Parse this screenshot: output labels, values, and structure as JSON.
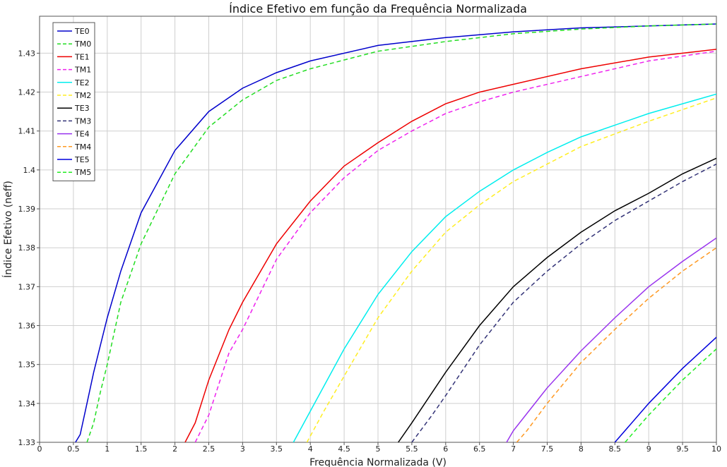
{
  "chart_data": {
    "type": "line",
    "title": "Índice Efetivo em função da Frequência Normalizada",
    "xlabel": "Frequência Normalizada (V)",
    "ylabel": "Índice Efetivo (neff)",
    "xlim": [
      0,
      10
    ],
    "ylim": [
      1.33,
      1.4395
    ],
    "grid": true,
    "legend_position": "top-left",
    "x_ticks": [
      "0",
      "0.5",
      "1",
      "1.5",
      "2",
      "2.5",
      "3",
      "3.5",
      "4",
      "4.5",
      "5",
      "5.5",
      "6",
      "6.5",
      "7",
      "7.5",
      "8",
      "8.5",
      "9",
      "9.5",
      "10"
    ],
    "y_ticks": [
      "1.33",
      "1.34",
      "1.35",
      "1.36",
      "1.37",
      "1.38",
      "1.39",
      "1.4",
      "1.41",
      "1.42",
      "1.43"
    ],
    "series": [
      {
        "name": "TE0",
        "color": "#0000cc",
        "dash": "solid",
        "x": [
          0.53,
          0.6,
          0.7,
          0.8,
          0.9,
          1.0,
          1.2,
          1.5,
          2.0,
          2.5,
          3.0,
          3.5,
          4.0,
          5.0,
          6.0,
          7.0,
          8.0,
          9.0,
          10.0
        ],
        "y": [
          1.33,
          1.332,
          1.34,
          1.348,
          1.355,
          1.362,
          1.374,
          1.389,
          1.405,
          1.415,
          1.421,
          1.425,
          1.428,
          1.432,
          1.434,
          1.4355,
          1.4365,
          1.437,
          1.4375
        ]
      },
      {
        "name": "TM0",
        "color": "#22dd22",
        "dash": "dashed",
        "x": [
          0.7,
          0.8,
          0.9,
          1.0,
          1.2,
          1.5,
          2.0,
          2.5,
          3.0,
          3.5,
          4.0,
          5.0,
          6.0,
          7.0,
          8.0,
          9.0,
          10.0
        ],
        "y": [
          1.33,
          1.335,
          1.343,
          1.35,
          1.366,
          1.381,
          1.399,
          1.411,
          1.418,
          1.423,
          1.426,
          1.4305,
          1.433,
          1.435,
          1.4362,
          1.437,
          1.4375
        ]
      },
      {
        "name": "TE1",
        "color": "#ee0000",
        "dash": "solid",
        "x": [
          2.15,
          2.3,
          2.5,
          2.8,
          3.0,
          3.5,
          4.0,
          4.5,
          5.0,
          5.5,
          6.0,
          6.5,
          7.0,
          8.0,
          9.0,
          10.0
        ],
        "y": [
          1.33,
          1.335,
          1.346,
          1.359,
          1.366,
          1.381,
          1.392,
          1.401,
          1.407,
          1.4125,
          1.417,
          1.42,
          1.422,
          1.426,
          1.429,
          1.431
        ]
      },
      {
        "name": "TM1",
        "color": "#ee22ee",
        "dash": "dashed",
        "x": [
          2.3,
          2.5,
          2.8,
          3.0,
          3.5,
          4.0,
          4.5,
          5.0,
          5.5,
          6.0,
          6.5,
          7.0,
          8.0,
          9.0,
          10.0
        ],
        "y": [
          1.33,
          1.337,
          1.353,
          1.359,
          1.377,
          1.389,
          1.398,
          1.405,
          1.41,
          1.4145,
          1.4175,
          1.42,
          1.424,
          1.428,
          1.4305
        ]
      },
      {
        "name": "TE2",
        "color": "#00eeee",
        "dash": "solid",
        "x": [
          3.75,
          4.0,
          4.5,
          5.0,
          5.5,
          6.0,
          6.5,
          7.0,
          7.5,
          8.0,
          9.0,
          10.0
        ],
        "y": [
          1.33,
          1.338,
          1.354,
          1.368,
          1.379,
          1.388,
          1.3945,
          1.4,
          1.4045,
          1.4085,
          1.4145,
          1.4195
        ]
      },
      {
        "name": "TM2",
        "color": "#ffee22",
        "dash": "dashed",
        "x": [
          3.95,
          4.2,
          4.5,
          5.0,
          5.5,
          6.0,
          6.5,
          7.0,
          7.5,
          8.0,
          9.0,
          10.0
        ],
        "y": [
          1.33,
          1.338,
          1.347,
          1.362,
          1.374,
          1.384,
          1.391,
          1.397,
          1.4015,
          1.406,
          1.4125,
          1.4185
        ]
      },
      {
        "name": "TE3",
        "color": "#000000",
        "dash": "solid",
        "x": [
          5.3,
          5.5,
          6.0,
          6.5,
          7.0,
          7.5,
          8.0,
          8.5,
          9.0,
          9.5,
          10.0
        ],
        "y": [
          1.33,
          1.335,
          1.348,
          1.36,
          1.37,
          1.3775,
          1.384,
          1.3895,
          1.394,
          1.399,
          1.403
        ]
      },
      {
        "name": "TM3",
        "color": "#333377",
        "dash": "dashed",
        "x": [
          5.5,
          5.8,
          6.0,
          6.5,
          7.0,
          7.5,
          8.0,
          8.5,
          9.0,
          9.5,
          10.0
        ],
        "y": [
          1.33,
          1.337,
          1.342,
          1.355,
          1.366,
          1.374,
          1.381,
          1.387,
          1.392,
          1.397,
          1.4015
        ]
      },
      {
        "name": "TE4",
        "color": "#9933ee",
        "dash": "solid",
        "x": [
          6.9,
          7.0,
          7.5,
          8.0,
          8.5,
          9.0,
          9.5,
          10.0
        ],
        "y": [
          1.33,
          1.333,
          1.344,
          1.3535,
          1.362,
          1.37,
          1.3765,
          1.3825
        ]
      },
      {
        "name": "TM4",
        "color": "#ff9922",
        "dash": "dashed",
        "x": [
          7.05,
          7.2,
          7.5,
          8.0,
          8.5,
          9.0,
          9.5,
          10.0
        ],
        "y": [
          1.33,
          1.333,
          1.34,
          1.3505,
          1.359,
          1.367,
          1.374,
          1.38
        ]
      },
      {
        "name": "TE5",
        "color": "#0000dd",
        "dash": "solid",
        "x": [
          8.5,
          8.7,
          9.0,
          9.5,
          10.0
        ],
        "y": [
          1.33,
          1.334,
          1.34,
          1.349,
          1.357
        ]
      },
      {
        "name": "TM5",
        "color": "#22ee22",
        "dash": "dashed",
        "x": [
          8.65,
          8.9,
          9.0,
          9.5,
          10.0
        ],
        "y": [
          1.33,
          1.335,
          1.337,
          1.346,
          1.354
        ]
      }
    ]
  }
}
